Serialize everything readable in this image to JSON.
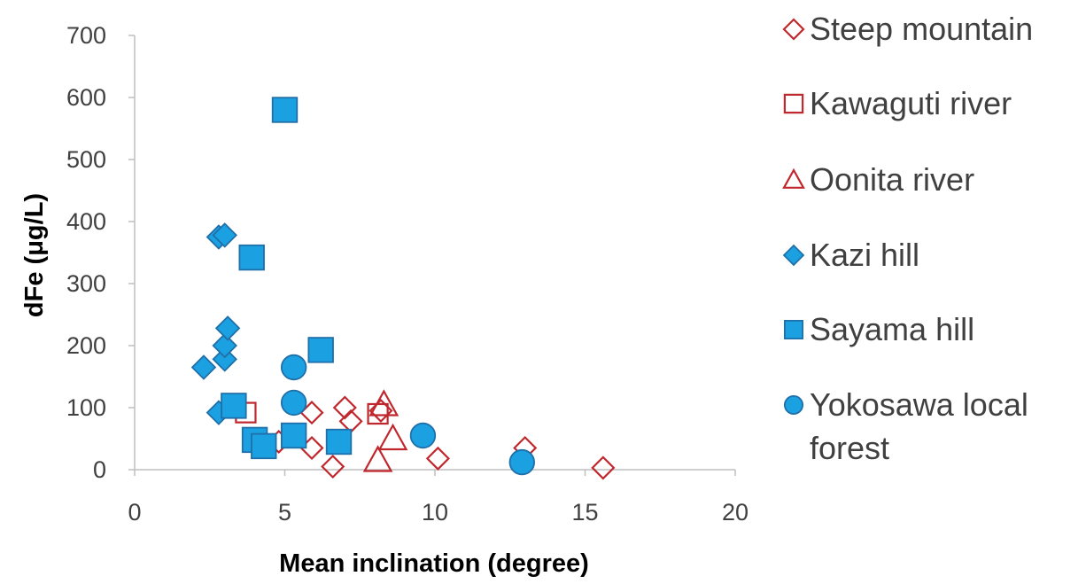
{
  "chart_data": {
    "type": "scatter",
    "title": "",
    "xlabel": "Mean inclination (degree)",
    "ylabel": "dFe (μg/L)",
    "xlim": [
      0,
      20
    ],
    "ylim": [
      0,
      700
    ],
    "xticks": [
      0,
      5,
      10,
      15,
      20
    ],
    "yticks": [
      0,
      100,
      200,
      300,
      400,
      500,
      600,
      700
    ],
    "grid": false,
    "legend_position": "right",
    "series": [
      {
        "name": "Steep mountain",
        "marker": "diamond-open",
        "color": "#C0272D",
        "points": [
          [
            4.8,
            45
          ],
          [
            5.9,
            35
          ],
          [
            5.9,
            92
          ],
          [
            6.6,
            5
          ],
          [
            7.0,
            100
          ],
          [
            7.2,
            78
          ],
          [
            8.2,
            95
          ],
          [
            10.1,
            18
          ],
          [
            13.0,
            35
          ],
          [
            15.6,
            3
          ]
        ]
      },
      {
        "name": "Kawaguti river",
        "marker": "square-open",
        "color": "#C0272D",
        "points": [
          [
            3.7,
            92
          ],
          [
            8.1,
            90
          ]
        ]
      },
      {
        "name": "Oonita river",
        "marker": "triangle-open",
        "color": "#C0272D",
        "points": [
          [
            8.1,
            15
          ],
          [
            8.3,
            105
          ],
          [
            8.6,
            50
          ]
        ]
      },
      {
        "name": "Kazi hill",
        "marker": "diamond-filled",
        "color": "#1BA1E2",
        "points": [
          [
            2.3,
            165
          ],
          [
            2.8,
            92
          ],
          [
            2.8,
            375
          ],
          [
            3.0,
            378
          ],
          [
            3.0,
            178
          ],
          [
            3.0,
            200
          ],
          [
            3.1,
            228
          ]
        ]
      },
      {
        "name": "Sayama hill",
        "marker": "square-filled",
        "color": "#1BA1E2",
        "points": [
          [
            5.0,
            580
          ],
          [
            3.9,
            342
          ],
          [
            6.2,
            193
          ],
          [
            3.3,
            103
          ],
          [
            4.0,
            48
          ],
          [
            4.3,
            38
          ],
          [
            5.3,
            55
          ],
          [
            6.8,
            45
          ]
        ]
      },
      {
        "name": "Yokosawa local forest",
        "legend_lines": [
          "Yokosawa local",
          "forest"
        ],
        "marker": "circle-filled",
        "color": "#1BA1E2",
        "points": [
          [
            5.3,
            165
          ],
          [
            5.3,
            108
          ],
          [
            9.6,
            55
          ],
          [
            12.9,
            12
          ]
        ]
      }
    ]
  }
}
